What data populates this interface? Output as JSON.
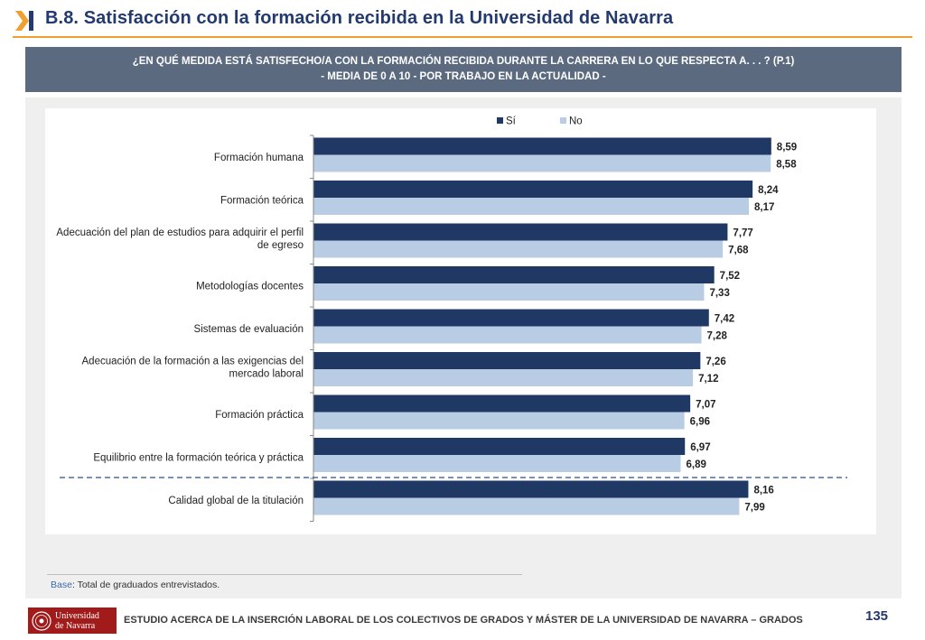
{
  "header": {
    "title": "B.8. Satisfacción con la formación recibida en la Universidad de Navarra",
    "icon": "chevron-bar-icon"
  },
  "question": {
    "line1": "¿EN QUÉ MEDIDA ESTÁ SATISFECHO/A CON LA FORMACIÓN RECIBIDA DURANTE LA CARRERA EN LO QUE RESPECTA A. . . ? (P.1)",
    "line2": "- MEDIA DE 0 A 10 - POR TRABAJO EN LA ACTUALIDAD -"
  },
  "chart_data": {
    "type": "bar",
    "orientation": "horizontal",
    "categories": [
      [
        "Formación humana"
      ],
      [
        "Formación teórica"
      ],
      [
        "Adecuación del plan de estudios para adquirir el perfil",
        "de egreso"
      ],
      [
        "Metodologías docentes"
      ],
      [
        "Sistemas de evaluación"
      ],
      [
        "Adecuación de la formación a las exigencias del",
        "mercado laboral"
      ],
      [
        "Formación práctica"
      ],
      [
        "Equilibrio entre la formación teórica y práctica"
      ],
      [
        "Calidad global de la titulación"
      ]
    ],
    "series": [
      {
        "name": "Sí",
        "color": "#203864",
        "values": [
          8.59,
          8.24,
          7.77,
          7.52,
          7.42,
          7.26,
          7.07,
          6.97,
          8.16
        ],
        "labels": [
          "8,59",
          "8,24",
          "7,77",
          "7,52",
          "7,42",
          "7,26",
          "7,07",
          "6,97",
          "8,16"
        ]
      },
      {
        "name": "No",
        "color": "#b8cce4",
        "values": [
          8.58,
          8.17,
          7.68,
          7.33,
          7.28,
          7.12,
          6.96,
          6.89,
          7.99
        ],
        "labels": [
          "8,58",
          "8,17",
          "7,68",
          "7,33",
          "7,28",
          "7,12",
          "6,96",
          "6,89",
          "7,99"
        ]
      }
    ],
    "xlim": [
      0,
      10
    ],
    "legend": [
      "Sí",
      "No"
    ],
    "legend_position": "top-center",
    "separator_after_index": 7
  },
  "base_note": {
    "key": "Base",
    "text": ": Total de graduados entrevistados."
  },
  "footer": {
    "logo_line1": "Universidad",
    "logo_line2": "de Navarra",
    "text": "ESTUDIO ACERCA DE LA INSERCIÓN LABORAL DE LOS COLECTIVOS DE GRADOS Y MÁSTER DE LA UNIVERSIDAD DE NAVARRA – GRADOS",
    "page_number": "135"
  }
}
